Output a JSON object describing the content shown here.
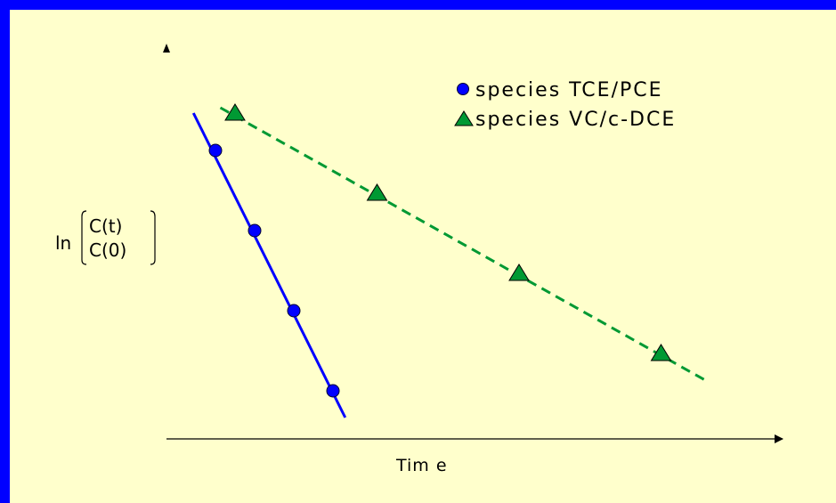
{
  "chart_data": {
    "type": "scatter",
    "xlabel": "Tim e",
    "ylabel": {
      "prefix": "ln",
      "numerator": "C(t)",
      "denominator": "C(0)"
    },
    "xlim": [
      0,
      15
    ],
    "ylim": [
      -7,
      0
    ],
    "grid": false,
    "legend_position": "top-right",
    "series": [
      {
        "name": "species TCE/PCE",
        "marker": "circle",
        "line": "solid",
        "color": "#0000ff",
        "points": [
          [
            1.0,
            -0.7
          ],
          [
            1.8,
            -2.2
          ],
          [
            2.6,
            -3.7
          ],
          [
            3.4,
            -5.2
          ]
        ],
        "fit": [
          [
            0.55,
            0.0
          ],
          [
            3.65,
            -5.7
          ]
        ]
      },
      {
        "name": "species VC/c-DCE",
        "marker": "triangle",
        "line": "dashed",
        "color": "#009933",
        "points": [
          [
            1.4,
            0.0
          ],
          [
            4.3,
            -1.5
          ],
          [
            7.2,
            -3.0
          ],
          [
            10.1,
            -4.5
          ]
        ],
        "fit": [
          [
            1.1,
            0.1
          ],
          [
            11.0,
            -5.0
          ]
        ]
      }
    ]
  }
}
